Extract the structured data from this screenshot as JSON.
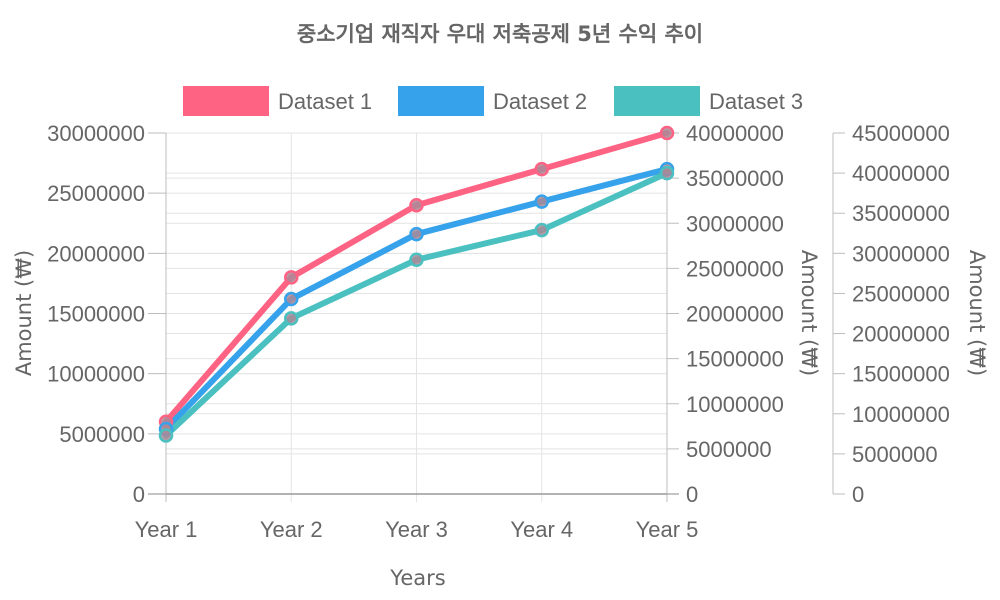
{
  "chart_data": {
    "type": "line",
    "title": "중소기업 재직자 우대 저축공제 5년 수익 추이",
    "xlabel": "Years",
    "categories": [
      "Year 1",
      "Year 2",
      "Year 3",
      "Year 4",
      "Year 5"
    ],
    "legend_position": "top",
    "grid": true,
    "axes": {
      "y": {
        "label": "Amount (₩)",
        "min": 0,
        "max": 30000000,
        "step": 5000000,
        "ticks": [
          "0",
          "5000000",
          "10000000",
          "15000000",
          "20000000",
          "25000000",
          "30000000"
        ]
      },
      "y1": {
        "label": "Amount (₩)",
        "min": 0,
        "max": 40000000,
        "step": 5000000,
        "ticks": [
          "0",
          "5000000",
          "10000000",
          "15000000",
          "20000000",
          "25000000",
          "30000000",
          "35000000",
          "40000000"
        ]
      },
      "y2": {
        "label": "Amount (₩)",
        "min": 0,
        "max": 45000000,
        "step": 5000000,
        "ticks": [
          "0",
          "5000000",
          "10000000",
          "15000000",
          "20000000",
          "25000000",
          "30000000",
          "35000000",
          "40000000",
          "45000000"
        ]
      }
    },
    "series": [
      {
        "name": "Dataset 1",
        "axis": "y",
        "color": "#ff6384",
        "values": [
          6000000,
          18000000,
          24000000,
          27000000,
          30000000
        ]
      },
      {
        "name": "Dataset 2",
        "axis": "y1",
        "color": "#36a2eb",
        "values": [
          7200000,
          21600000,
          28800000,
          32400000,
          36000000
        ]
      },
      {
        "name": "Dataset 3",
        "axis": "y2",
        "color": "#4bc0c0",
        "values": [
          7300000,
          21900000,
          29200000,
          32900000,
          40000000
        ]
      }
    ]
  }
}
